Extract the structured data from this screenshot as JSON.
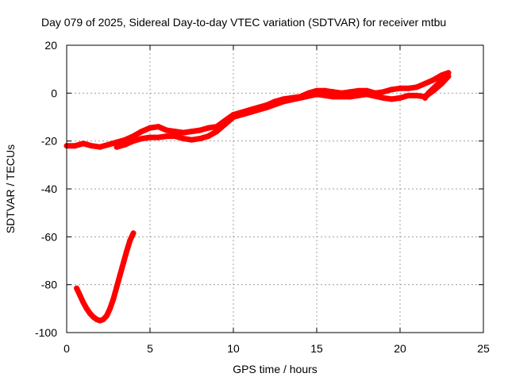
{
  "chart_data": {
    "type": "scatter",
    "title": "Day 079 of 2025, Sidereal Day-to-day VTEC variation (SDTVAR) for receiver mtbu",
    "xlabel": "GPS time / hours",
    "ylabel": "SDTVAR / TECUs",
    "xlim": [
      0,
      25
    ],
    "ylim": [
      -100,
      20
    ],
    "xticks": [
      0,
      5,
      10,
      15,
      20,
      25
    ],
    "yticks": [
      -100,
      -80,
      -60,
      -40,
      -20,
      0,
      20
    ],
    "grid": true,
    "series_color": "#ff0000",
    "series": [
      {
        "name": "sdtvar-main",
        "points": [
          [
            0.0,
            -22
          ],
          [
            0.5,
            -22
          ],
          [
            1.0,
            -21
          ],
          [
            1.5,
            -22
          ],
          [
            2.0,
            -22.5
          ],
          [
            2.5,
            -21.5
          ],
          [
            3.0,
            -20.5
          ],
          [
            3.5,
            -19.5
          ],
          [
            4.0,
            -18
          ],
          [
            4.5,
            -16
          ],
          [
            5.0,
            -14.5
          ],
          [
            5.5,
            -14
          ],
          [
            6.0,
            -15.5
          ],
          [
            6.5,
            -16
          ],
          [
            7.0,
            -16.5
          ],
          [
            7.5,
            -16
          ],
          [
            8.0,
            -15.5
          ],
          [
            8.5,
            -14.5
          ],
          [
            9.0,
            -14
          ],
          [
            9.5,
            -11.5
          ],
          [
            10.0,
            -9
          ],
          [
            10.5,
            -8
          ],
          [
            11.0,
            -7
          ],
          [
            11.5,
            -6
          ],
          [
            12.0,
            -5
          ],
          [
            12.5,
            -3.5
          ],
          [
            13.0,
            -2.5
          ],
          [
            13.5,
            -2
          ],
          [
            14.0,
            -1.5
          ],
          [
            14.5,
            0
          ],
          [
            15.0,
            1
          ],
          [
            15.5,
            1
          ],
          [
            16.0,
            0.5
          ],
          [
            16.5,
            0
          ],
          [
            17.0,
            0.5
          ],
          [
            17.5,
            1
          ],
          [
            18.0,
            1
          ],
          [
            18.5,
            0
          ],
          [
            19.0,
            0.5
          ],
          [
            19.5,
            1.5
          ],
          [
            20.0,
            2
          ],
          [
            20.5,
            2
          ],
          [
            21.0,
            2.5
          ],
          [
            21.5,
            4
          ],
          [
            22.0,
            5.5
          ],
          [
            22.5,
            7.5
          ],
          [
            22.9,
            8.5
          ]
        ]
      },
      {
        "name": "sdtvar-variant",
        "points": [
          [
            3.0,
            -22.5
          ],
          [
            3.5,
            -21.5
          ],
          [
            4.0,
            -20
          ],
          [
            4.5,
            -19
          ],
          [
            5.0,
            -18.5
          ],
          [
            5.5,
            -18.5
          ],
          [
            6.0,
            -18
          ],
          [
            6.5,
            -18
          ],
          [
            7.0,
            -19
          ],
          [
            7.5,
            -19.5
          ],
          [
            8.0,
            -19
          ],
          [
            8.5,
            -18
          ],
          [
            9.0,
            -16
          ],
          [
            9.5,
            -13
          ],
          [
            10.0,
            -10
          ],
          [
            11.0,
            -8
          ],
          [
            12.0,
            -6
          ],
          [
            13.0,
            -3.5
          ],
          [
            14.0,
            -2
          ],
          [
            15.0,
            -0.5
          ],
          [
            16.0,
            -1.5
          ],
          [
            17.0,
            -1.5
          ],
          [
            18.0,
            -0.5
          ],
          [
            19.0,
            -2
          ],
          [
            19.5,
            -2.5
          ],
          [
            20.0,
            -2
          ],
          [
            20.5,
            -1
          ],
          [
            21.0,
            -1
          ],
          [
            21.5,
            -1.5
          ],
          [
            22.0,
            1
          ],
          [
            22.5,
            4
          ],
          [
            22.9,
            7
          ]
        ]
      },
      {
        "name": "sdtvar-early-segment",
        "points": [
          [
            0.6,
            -81.5
          ],
          [
            0.8,
            -84.5
          ],
          [
            1.0,
            -87.5
          ],
          [
            1.2,
            -90
          ],
          [
            1.4,
            -92
          ],
          [
            1.6,
            -93.5
          ],
          [
            1.8,
            -94.5
          ],
          [
            2.0,
            -95
          ],
          [
            2.2,
            -94.5
          ],
          [
            2.4,
            -93
          ],
          [
            2.6,
            -90
          ],
          [
            2.8,
            -86
          ],
          [
            3.0,
            -81
          ],
          [
            3.2,
            -76
          ],
          [
            3.4,
            -71
          ],
          [
            3.6,
            -66
          ],
          [
            3.8,
            -61.5
          ],
          [
            4.0,
            -58.5
          ]
        ]
      },
      {
        "name": "sdtvar-late-tail",
        "points": [
          [
            21.5,
            -2
          ],
          [
            21.7,
            0
          ],
          [
            22.0,
            2
          ],
          [
            22.3,
            4
          ],
          [
            22.6,
            6
          ]
        ]
      }
    ]
  }
}
